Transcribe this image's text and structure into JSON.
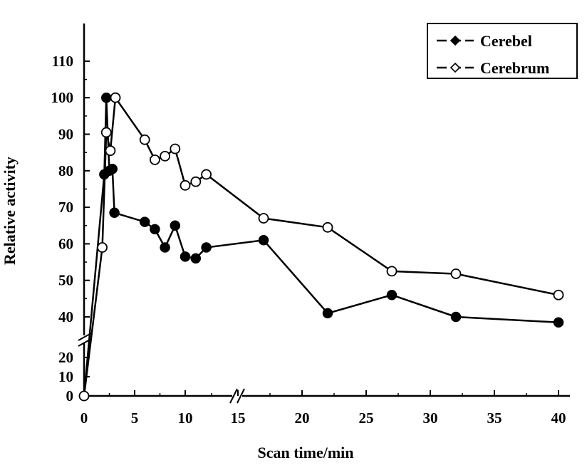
{
  "chart_data": {
    "type": "line",
    "xlabel": "Scan time/min",
    "ylabel": "Relative activity",
    "x_ticks": [
      0,
      5,
      10,
      15,
      20,
      25,
      30,
      35,
      40
    ],
    "y_ticks_lower": [
      0,
      10,
      20
    ],
    "y_ticks_upper": [
      40,
      50,
      60,
      70,
      80,
      90,
      100,
      110
    ],
    "x_axis_break_between": [
      12,
      15
    ],
    "y_axis_break_between": [
      20,
      40
    ],
    "xlim": [
      0,
      42
    ],
    "ylim": [
      0,
      110
    ],
    "legend_position": "top-right",
    "grid": false,
    "series": [
      {
        "name": "Cerebel",
        "marker": "filled-diamond",
        "color": "#000000",
        "line_style": "dashed-solid",
        "points": [
          [
            0,
            0
          ],
          [
            2,
            79
          ],
          [
            2.2,
            100
          ],
          [
            2.5,
            80
          ],
          [
            2.8,
            80.5
          ],
          [
            3,
            68.5
          ],
          [
            6,
            66
          ],
          [
            7,
            64
          ],
          [
            8,
            59
          ],
          [
            9,
            65
          ],
          [
            10,
            56.5
          ],
          [
            11,
            56
          ],
          [
            12,
            59
          ],
          [
            17,
            61
          ],
          [
            22,
            41
          ],
          [
            27,
            46
          ],
          [
            32,
            40
          ],
          [
            40,
            38.5
          ]
        ]
      },
      {
        "name": "Cerebrum",
        "marker": "open-diamond",
        "color": "#000000",
        "line_style": "dashed-solid",
        "points": [
          [
            0,
            0
          ],
          [
            1.8,
            59
          ],
          [
            2.2,
            90.5
          ],
          [
            2.6,
            85.5
          ],
          [
            3.1,
            100
          ],
          [
            6,
            88.5
          ],
          [
            7,
            83
          ],
          [
            8,
            84
          ],
          [
            9,
            86
          ],
          [
            10,
            76
          ],
          [
            11,
            77
          ],
          [
            12,
            79
          ],
          [
            17,
            67
          ],
          [
            22,
            64.5
          ],
          [
            27,
            52.5
          ],
          [
            32,
            51.8
          ],
          [
            40,
            46
          ]
        ]
      }
    ]
  }
}
